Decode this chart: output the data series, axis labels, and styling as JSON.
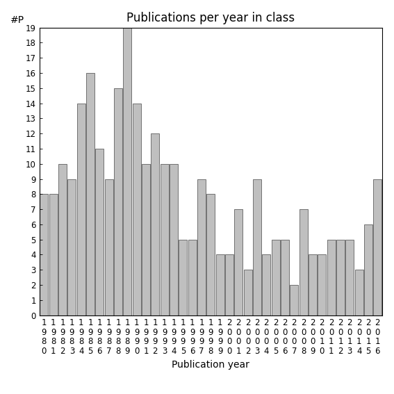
{
  "title": "Publications per year in class",
  "xlabel": "Publication year",
  "ylabel": "#P",
  "years": [
    "1980",
    "1981",
    "1982",
    "1983",
    "1984",
    "1985",
    "1986",
    "1987",
    "1988",
    "1989",
    "1990",
    "1991",
    "1992",
    "1993",
    "1994",
    "1995",
    "1996",
    "1997",
    "1998",
    "1999",
    "2000",
    "2001",
    "2002",
    "2003",
    "2004",
    "2005",
    "2006",
    "2007",
    "2008",
    "2009",
    "2010",
    "2011",
    "2012",
    "2013",
    "2014",
    "2015",
    "2016"
  ],
  "values": [
    8,
    8,
    10,
    9,
    14,
    16,
    11,
    9,
    15,
    19,
    14,
    10,
    12,
    10,
    10,
    5,
    5,
    9,
    8,
    4,
    4,
    7,
    3,
    9,
    4,
    5,
    5,
    2,
    7,
    4,
    4,
    5,
    5,
    5,
    3,
    6,
    9
  ],
  "bar_color": "#bfbfbf",
  "bar_edge_color": "#606060",
  "ylim": [
    0,
    19
  ],
  "yticks": [
    0,
    1,
    2,
    3,
    4,
    5,
    6,
    7,
    8,
    9,
    10,
    11,
    12,
    13,
    14,
    15,
    16,
    17,
    18,
    19
  ],
  "background_color": "#ffffff",
  "title_fontsize": 12,
  "axis_label_fontsize": 10,
  "tick_fontsize": 8.5
}
